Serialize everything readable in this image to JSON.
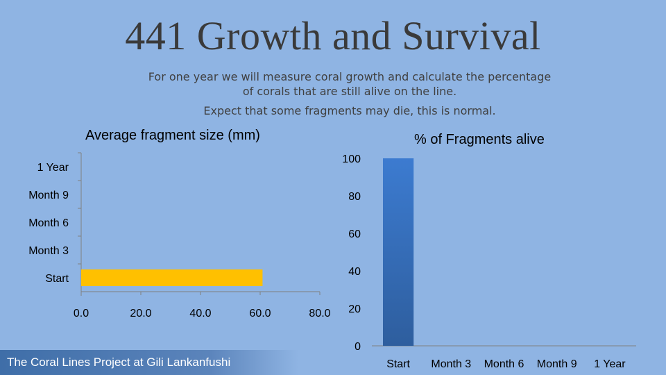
{
  "slide": {
    "title": "441 Growth and Survival",
    "subtitle_line1": "For one year we will measure coral growth and calculate the percentage",
    "subtitle_line2": "of corals that are still alive on the line.",
    "subtitle_line3": "Expect that some fragments may die, this is normal.",
    "footer": "The Coral Lines Project at Gili Lankanfushi"
  },
  "colors": {
    "background": "#8fb4e3",
    "size_bar": "#ffc000",
    "alive_bar_top": "#3c7bd0",
    "alive_bar_bottom": "#2e5e9e"
  },
  "chart_data": [
    {
      "type": "bar",
      "orientation": "horizontal",
      "title": "Average fragment size (mm)",
      "categories": [
        "Start",
        "Month 3",
        "Month 6",
        "Month 9",
        "1 Year"
      ],
      "values": [
        60.8,
        null,
        null,
        null,
        null
      ],
      "xlim": [
        0,
        80
      ],
      "xticks": [
        "0.0",
        "20.0",
        "40.0",
        "60.0",
        "80.0"
      ],
      "grid": false
    },
    {
      "type": "bar",
      "orientation": "vertical",
      "title": "% of Fragments alive",
      "categories": [
        "Start",
        "Month 3",
        "Month 6",
        "Month 9",
        "1 Year"
      ],
      "values": [
        100,
        null,
        null,
        null,
        null
      ],
      "ylim": [
        0,
        100
      ],
      "yticks": [
        "0",
        "20",
        "40",
        "60",
        "80",
        "100"
      ],
      "grid": false
    }
  ]
}
